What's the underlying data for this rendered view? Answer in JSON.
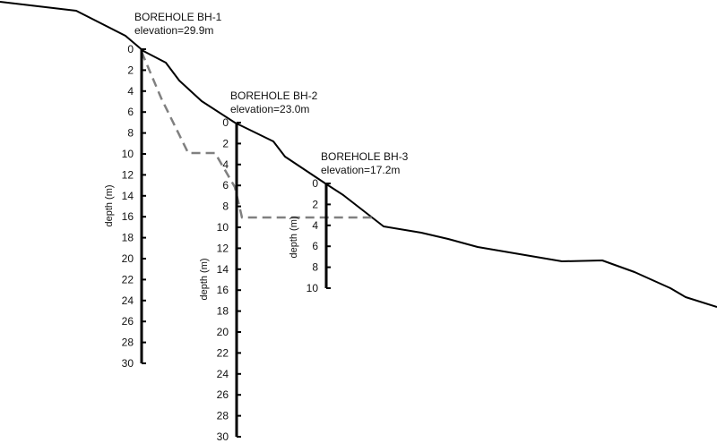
{
  "colors": {
    "ground": "#000000",
    "interface": "#808080",
    "text": "#111111"
  },
  "boreholes": [
    {
      "id": "bh1",
      "title": "BOREHOLE BH-1",
      "elevation": "elevation=29.9m",
      "axis_label": "depth (m)",
      "ticks": [
        "0",
        "2",
        "4",
        "6",
        "8",
        "10",
        "12",
        "14",
        "16",
        "18",
        "20",
        "22",
        "24",
        "26",
        "28",
        "30"
      ]
    },
    {
      "id": "bh2",
      "title": "BOREHOLE BH-2",
      "elevation": "elevation=23.0m",
      "axis_label": "depth (m)",
      "ticks": [
        "0",
        "2",
        "4",
        "6",
        "8",
        "10",
        "12",
        "14",
        "16",
        "18",
        "20",
        "22",
        "24",
        "26",
        "28",
        "30"
      ]
    },
    {
      "id": "bh3",
      "title": "BOREHOLE BH-3",
      "elevation": "elevation=17.2m",
      "axis_label": "depth (m)",
      "ticks": [
        "0",
        "2",
        "4",
        "6",
        "8",
        "10"
      ]
    }
  ]
}
